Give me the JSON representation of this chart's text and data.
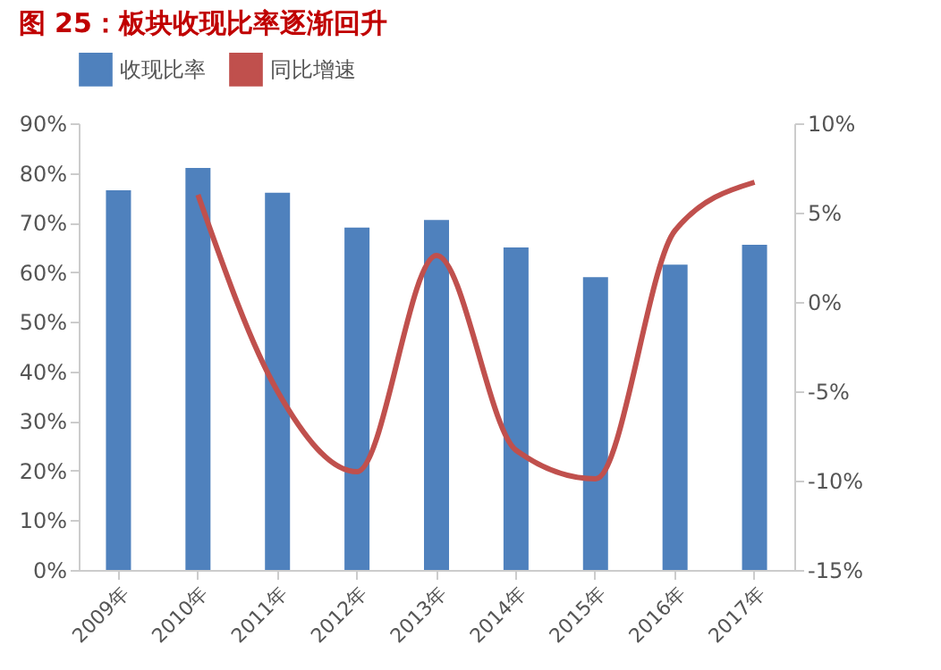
{
  "chart_data": {
    "type": "bar",
    "title": "图 25：板块收现比率逐渐回升",
    "categories": [
      "2009年",
      "2010年",
      "2011年",
      "2012年",
      "2013年",
      "2014年",
      "2015年",
      "2016年",
      "2017年"
    ],
    "series": [
      {
        "name": "收现比率",
        "color": "#4f81bd",
        "values": [
          76.5,
          81,
          76,
          69,
          70.5,
          65,
          59,
          61.5,
          65.5
        ]
      },
      {
        "name": "同比增速",
        "type": "line",
        "axis": "y2",
        "color": "#c0504d",
        "values": [
          null,
          6,
          -5,
          -9.5,
          2.6,
          -8.3,
          -9.9,
          4,
          6.7
        ]
      }
    ],
    "ylim": [
      0,
      90
    ],
    "yticks": [
      {
        "value": 0,
        "label": "0%"
      },
      {
        "value": 10,
        "label": "10%"
      },
      {
        "value": 20,
        "label": "20%"
      },
      {
        "value": 30,
        "label": "30%"
      },
      {
        "value": 40,
        "label": "40%"
      },
      {
        "value": 50,
        "label": "50%"
      },
      {
        "value": 60,
        "label": "60%"
      },
      {
        "value": 70,
        "label": "70%"
      },
      {
        "value": 80,
        "label": "80%"
      },
      {
        "value": 90,
        "label": "90%"
      }
    ],
    "y2lim": [
      -15,
      10
    ],
    "y2ticks": [
      {
        "value": -15,
        "label": "-15%"
      },
      {
        "value": -10,
        "label": "-10%"
      },
      {
        "value": -5,
        "label": "-5%"
      },
      {
        "value": 0,
        "label": "0%"
      },
      {
        "value": 5,
        "label": "5%"
      },
      {
        "value": 10,
        "label": "10%"
      }
    ],
    "legend": "top",
    "grid": false
  }
}
